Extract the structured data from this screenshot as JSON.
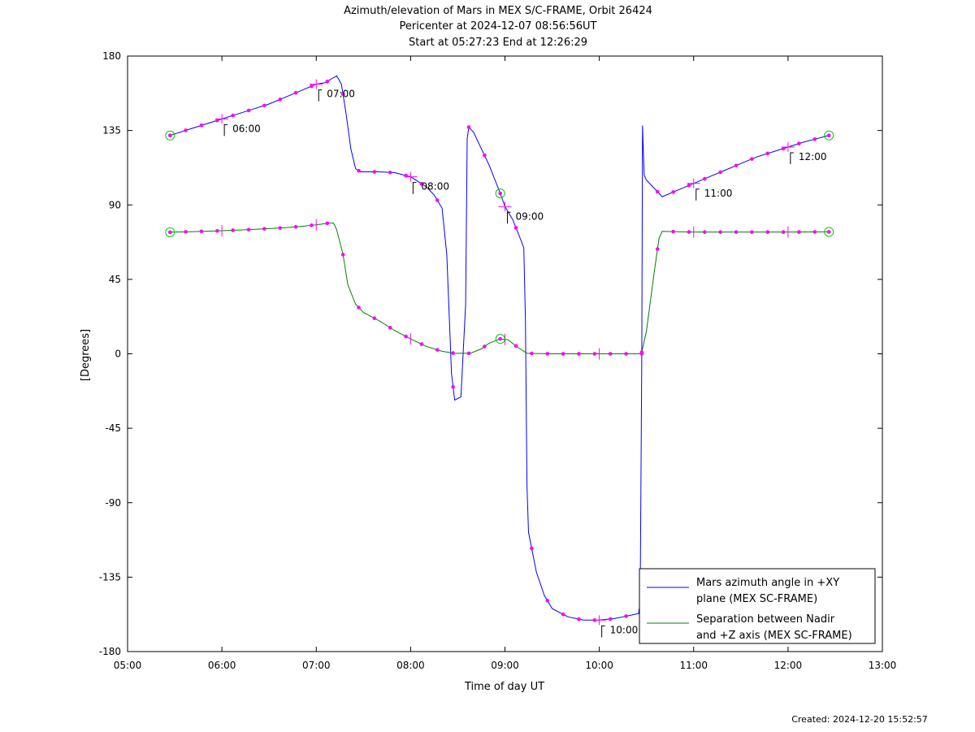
{
  "chart_data": {
    "type": "line",
    "title_lines": [
      "Azimuth/elevation of Mars in MEX S/C-FRAME,  Orbit 26424",
      "Pericenter at 2024-12-07 08:56:56UT",
      "Start at 05:27:23 End at 12:26:29"
    ],
    "xlabel": "Time of day UT",
    "ylabel": "[Degrees]",
    "xlim": [
      "05:00",
      "13:00"
    ],
    "ylim": [
      -180,
      180
    ],
    "x_ticks": [
      "05:00",
      "06:00",
      "07:00",
      "08:00",
      "09:00",
      "10:00",
      "11:00",
      "12:00",
      "13:00"
    ],
    "y_ticks": [
      "180",
      "135",
      "90",
      "45",
      "0",
      "-45",
      "-90",
      "-135",
      "-180"
    ],
    "legend_position": "bottom-right",
    "series": [
      {
        "name": "Mars azimuth angle in +XY plane (MEX SC-FRAME)",
        "legend_lines": [
          "Mars azimuth angle in +XY",
          "plane (MEX SC-FRAME)"
        ],
        "color": "#0000ff",
        "points": [
          [
            "05:27",
            132
          ],
          [
            "05:40",
            136
          ],
          [
            "05:50",
            139
          ],
          [
            "06:00",
            142
          ],
          [
            "06:10",
            145
          ],
          [
            "06:20",
            148
          ],
          [
            "06:30",
            151
          ],
          [
            "06:40",
            155
          ],
          [
            "06:50",
            159
          ],
          [
            "07:00",
            163
          ],
          [
            "07:06",
            164
          ],
          [
            "07:11",
            167
          ],
          [
            "07:13",
            168
          ],
          [
            "07:16",
            163
          ],
          [
            "07:19",
            145
          ],
          [
            "07:22",
            124
          ],
          [
            "07:25",
            112
          ],
          [
            "07:28",
            110
          ],
          [
            "07:40",
            110
          ],
          [
            "07:50",
            109.5
          ],
          [
            "08:00",
            107
          ],
          [
            "08:10",
            101
          ],
          [
            "08:15",
            96
          ],
          [
            "08:20",
            88
          ],
          [
            "08:23",
            60
          ],
          [
            "08:26",
            -12
          ],
          [
            "08:28",
            -28
          ],
          [
            "08:32",
            -26
          ],
          [
            "08:35",
            30
          ],
          [
            "08:36",
            130
          ],
          [
            "08:37",
            137
          ],
          [
            "08:40",
            134
          ],
          [
            "08:50",
            114
          ],
          [
            "08:57",
            97
          ],
          [
            "09:00",
            89
          ],
          [
            "09:05",
            81
          ],
          [
            "09:10",
            69
          ],
          [
            "09:12",
            64
          ],
          [
            "09:13",
            20
          ],
          [
            "09:14",
            -80
          ],
          [
            "09:15",
            -108
          ],
          [
            "09:20",
            -132
          ],
          [
            "09:25",
            -146
          ],
          [
            "09:30",
            -154
          ],
          [
            "09:40",
            -159
          ],
          [
            "09:50",
            -161
          ],
          [
            "10:00",
            -161
          ],
          [
            "10:10",
            -160
          ],
          [
            "10:20",
            -158
          ],
          [
            "10:25",
            -157
          ],
          [
            "10:26",
            -150
          ],
          [
            "10:27",
            0
          ],
          [
            "10:27.5",
            138
          ],
          [
            "10:28.5",
            108
          ],
          [
            "10:30",
            105
          ],
          [
            "10:40",
            95
          ],
          [
            "10:50",
            99
          ],
          [
            "11:00",
            103
          ],
          [
            "11:10",
            107
          ],
          [
            "11:20",
            111
          ],
          [
            "11:30",
            115
          ],
          [
            "11:40",
            119
          ],
          [
            "11:50",
            122
          ],
          [
            "12:00",
            125
          ],
          [
            "12:10",
            128
          ],
          [
            "12:20",
            130.5
          ],
          [
            "12:26",
            132
          ]
        ]
      },
      {
        "name": "Separation between Nadir and +Z axis (MEX SC-FRAME)",
        "legend_lines": [
          "Separation between Nadir",
          "and +Z axis (MEX SC-FRAME)"
        ],
        "color": "#008000",
        "points": [
          [
            "05:27",
            73.5
          ],
          [
            "05:40",
            73.8
          ],
          [
            "05:50",
            74.1
          ],
          [
            "06:00",
            74.4
          ],
          [
            "06:10",
            74.8
          ],
          [
            "06:20",
            75.2
          ],
          [
            "06:30",
            75.7
          ],
          [
            "06:40",
            76.2
          ],
          [
            "06:50",
            77
          ],
          [
            "07:00",
            78
          ],
          [
            "07:08",
            79
          ],
          [
            "07:11",
            79
          ],
          [
            "07:13",
            75
          ],
          [
            "07:17",
            60
          ],
          [
            "07:20",
            42
          ],
          [
            "07:25",
            30
          ],
          [
            "07:30",
            25
          ],
          [
            "07:40",
            20
          ],
          [
            "07:50",
            14
          ],
          [
            "08:00",
            9
          ],
          [
            "08:10",
            4.5
          ],
          [
            "08:20",
            1.5
          ],
          [
            "08:28",
            0.3
          ],
          [
            "08:38",
            0.3
          ],
          [
            "08:45",
            3
          ],
          [
            "08:50",
            6.5
          ],
          [
            "08:57",
            9
          ],
          [
            "09:02",
            8.5
          ],
          [
            "09:08",
            4
          ],
          [
            "09:14",
            0.3
          ],
          [
            "09:30",
            0
          ],
          [
            "10:00",
            0
          ],
          [
            "10:26",
            0
          ],
          [
            "10:27",
            1
          ],
          [
            "10:30",
            14
          ],
          [
            "10:35",
            50
          ],
          [
            "10:38",
            70
          ],
          [
            "10:40",
            74
          ],
          [
            "10:50",
            73.8
          ],
          [
            "11:00",
            73.6
          ],
          [
            "11:30",
            73.6
          ],
          [
            "12:00",
            73.6
          ],
          [
            "12:26",
            73.7
          ]
        ]
      }
    ],
    "hour_markers": [
      {
        "label": "06:00",
        "time": "06:00",
        "y": 142
      },
      {
        "label": "07:00",
        "time": "07:00",
        "y": 163
      },
      {
        "label": "08:00",
        "time": "08:00",
        "y": 107
      },
      {
        "label": "09:00",
        "time": "09:00",
        "y": 89
      },
      {
        "label": "10:00",
        "time": "10:00",
        "y": -161
      },
      {
        "label": "11:00",
        "time": "11:00",
        "y": 103
      },
      {
        "label": "12:00",
        "time": "12:00",
        "y": 125
      }
    ],
    "magenta_dots": [
      {
        "series": 0,
        "times": [
          "05:27",
          "05:37",
          "05:47",
          "05:57",
          "06:07",
          "06:17",
          "06:27",
          "06:37",
          "06:47",
          "06:57",
          "07:07",
          "07:17",
          "07:27",
          "07:37",
          "07:47",
          "07:57",
          "08:07",
          "08:17",
          "08:27",
          "08:37",
          "08:47",
          "08:57",
          "09:07",
          "09:17",
          "09:27",
          "09:37",
          "09:47",
          "09:57",
          "10:07",
          "10:17",
          "10:27",
          "10:37",
          "10:47",
          "10:57",
          "11:07",
          "11:17",
          "11:27",
          "11:37",
          "11:47",
          "11:57",
          "12:07",
          "12:17",
          "12:26"
        ]
      },
      {
        "series": 1,
        "times": [
          "05:27",
          "05:37",
          "05:47",
          "05:57",
          "06:07",
          "06:17",
          "06:27",
          "06:37",
          "06:47",
          "06:57",
          "07:07",
          "07:17",
          "07:27",
          "07:37",
          "07:47",
          "07:57",
          "08:07",
          "08:17",
          "08:27",
          "08:37",
          "08:47",
          "08:57",
          "09:07",
          "09:17",
          "09:27",
          "09:37",
          "09:47",
          "09:57",
          "10:07",
          "10:17",
          "10:27",
          "10:37",
          "10:47",
          "10:57",
          "11:07",
          "11:17",
          "11:27",
          "11:37",
          "11:47",
          "11:57",
          "12:07",
          "12:17",
          "12:26"
        ]
      }
    ],
    "green_circles": [
      {
        "series": 0,
        "time": "05:27"
      },
      {
        "series": 0,
        "time": "08:57"
      },
      {
        "series": 0,
        "time": "12:26"
      },
      {
        "series": 1,
        "time": "05:27"
      },
      {
        "series": 1,
        "time": "08:57"
      },
      {
        "series": 1,
        "time": "12:26"
      }
    ],
    "footer": "Created: 2024-12-20 15:52:57"
  },
  "colors": {
    "marker": "#ff00ff",
    "event_circle": "#00cc00",
    "axis": "#000000"
  }
}
